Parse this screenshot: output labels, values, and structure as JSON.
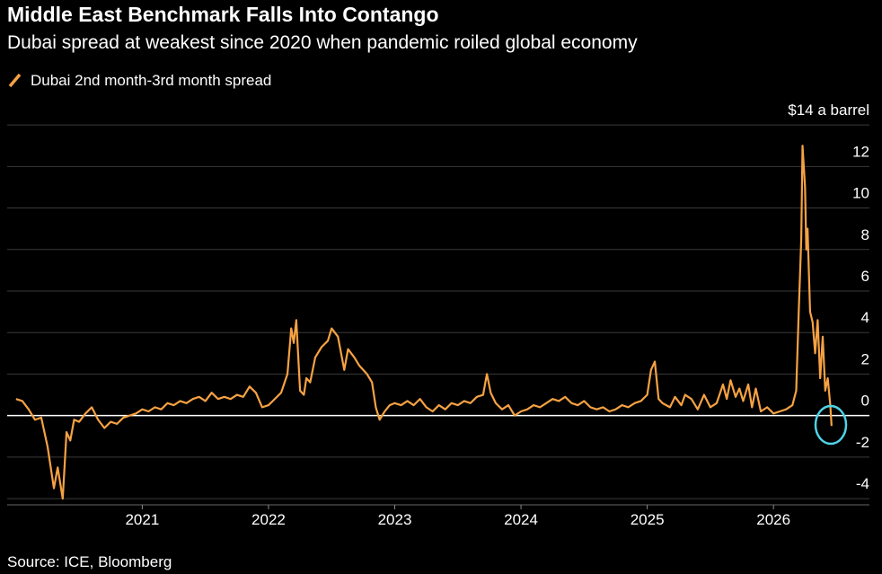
{
  "chart_data": {
    "type": "line",
    "title": "Middle East Benchmark Falls Into Contango",
    "subtitle": "Dubai spread at weakest since 2020 when pandemic roiled global economy",
    "source": "Source: ICE, Bloomberg",
    "x": [
      2020.0,
      2020.05,
      2020.1,
      2020.15,
      2020.2,
      2020.25,
      2020.3,
      2020.33,
      2020.37,
      2020.4,
      2020.43,
      2020.46,
      2020.5,
      2020.55,
      2020.6,
      2020.65,
      2020.7,
      2020.75,
      2020.8,
      2020.85,
      2020.9,
      2020.95,
      2021.0,
      2021.05,
      2021.1,
      2021.15,
      2021.2,
      2021.25,
      2021.3,
      2021.35,
      2021.4,
      2021.45,
      2021.5,
      2021.55,
      2021.6,
      2021.65,
      2021.7,
      2021.75,
      2021.8,
      2021.85,
      2021.9,
      2021.95,
      2022.0,
      2022.05,
      2022.1,
      2022.15,
      2022.18,
      2022.2,
      2022.22,
      2022.25,
      2022.28,
      2022.3,
      2022.33,
      2022.37,
      2022.42,
      2022.47,
      2022.5,
      2022.55,
      2022.6,
      2022.63,
      2022.68,
      2022.72,
      2022.78,
      2022.82,
      2022.85,
      2022.88,
      2022.92,
      2022.96,
      2023.0,
      2023.05,
      2023.1,
      2023.15,
      2023.2,
      2023.25,
      2023.3,
      2023.35,
      2023.4,
      2023.45,
      2023.5,
      2023.55,
      2023.6,
      2023.65,
      2023.7,
      2023.73,
      2023.76,
      2023.8,
      2023.85,
      2023.9,
      2023.95,
      2024.0,
      2024.05,
      2024.1,
      2024.15,
      2024.2,
      2024.25,
      2024.3,
      2024.35,
      2024.4,
      2024.45,
      2024.5,
      2024.55,
      2024.6,
      2024.65,
      2024.7,
      2024.75,
      2024.8,
      2024.85,
      2024.9,
      2024.95,
      2025.0,
      2025.03,
      2025.06,
      2025.09,
      2025.12,
      2025.18,
      2025.22,
      2025.27,
      2025.3,
      2025.35,
      2025.4,
      2025.45,
      2025.5,
      2025.55,
      2025.6,
      2025.63,
      2025.66,
      2025.7,
      2025.73,
      2025.76,
      2025.8,
      2025.83,
      2025.86,
      2025.9,
      2025.95,
      2026.0,
      2026.05,
      2026.1,
      2026.15,
      2026.18,
      2026.2,
      2026.22,
      2026.23,
      2026.25,
      2026.26,
      2026.27,
      2026.29,
      2026.31,
      2026.33,
      2026.35,
      2026.37,
      2026.39,
      2026.41,
      2026.43,
      2026.45,
      2026.46
    ],
    "series": [
      {
        "name": "Dubai 2nd month-3rd month spread",
        "color": "#f6a243",
        "values": [
          0.8,
          0.7,
          0.3,
          -0.2,
          -0.1,
          -1.5,
          -3.5,
          -2.5,
          -4.0,
          -0.8,
          -1.2,
          -0.2,
          -0.3,
          0.1,
          0.4,
          -0.2,
          -0.6,
          -0.3,
          -0.4,
          -0.1,
          0.0,
          0.1,
          0.3,
          0.2,
          0.4,
          0.3,
          0.6,
          0.5,
          0.7,
          0.6,
          0.8,
          0.9,
          0.7,
          1.1,
          0.8,
          0.9,
          0.8,
          1.0,
          0.9,
          1.4,
          1.1,
          0.4,
          0.5,
          0.8,
          1.1,
          2.0,
          4.2,
          3.5,
          4.6,
          1.2,
          1.0,
          1.8,
          1.6,
          2.8,
          3.3,
          3.6,
          4.2,
          3.8,
          2.2,
          3.2,
          2.8,
          2.4,
          2.0,
          1.6,
          0.4,
          -0.2,
          0.2,
          0.5,
          0.6,
          0.5,
          0.7,
          0.5,
          0.8,
          0.4,
          0.2,
          0.5,
          0.3,
          0.6,
          0.5,
          0.7,
          0.6,
          0.9,
          1.0,
          2.0,
          1.1,
          0.6,
          0.3,
          0.5,
          0.0,
          0.2,
          0.3,
          0.5,
          0.4,
          0.6,
          0.8,
          0.7,
          0.9,
          0.6,
          0.5,
          0.7,
          0.4,
          0.3,
          0.4,
          0.2,
          0.3,
          0.5,
          0.4,
          0.6,
          0.7,
          1.0,
          2.2,
          2.6,
          0.8,
          0.6,
          0.4,
          0.9,
          0.5,
          1.0,
          0.8,
          0.3,
          1.0,
          0.4,
          0.6,
          1.5,
          0.8,
          1.7,
          0.9,
          1.3,
          0.7,
          1.5,
          0.4,
          1.3,
          0.2,
          0.4,
          0.1,
          0.2,
          0.3,
          0.5,
          1.2,
          5.0,
          8.5,
          13.0,
          11.0,
          8.0,
          9.0,
          5.0,
          4.5,
          3.0,
          4.6,
          1.8,
          3.8,
          1.2,
          1.8,
          0.5,
          -0.5
        ]
      }
    ],
    "xlim": [
      2019.93,
      2026.76
    ],
    "xticks": [
      2021,
      2022,
      2023,
      2024,
      2025,
      2026
    ],
    "ylim": [
      -4.3,
      15
    ],
    "yticks": [
      -4,
      -2,
      0,
      2,
      4,
      6,
      8,
      10,
      12,
      {
        "value": 14,
        "label": "$14 a barrel"
      }
    ],
    "grid": true
  }
}
